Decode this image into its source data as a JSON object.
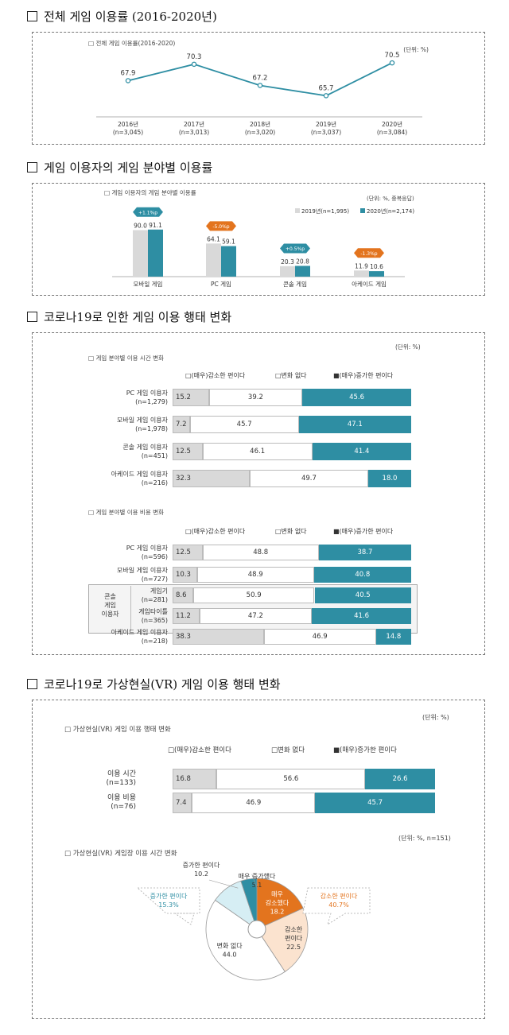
{
  "s1": {
    "title": "전체 게임 이용률 (2016-2020년)",
    "chart_data": {
      "type": "line",
      "subtitle": "□ 전체 게임 이용률(2016-2020)",
      "unit": "(단위: %)",
      "categories": [
        "2016년",
        "2017년",
        "2018년",
        "2019년",
        "2020년"
      ],
      "n": [
        "(n=3,045)",
        "(n=3,013)",
        "(n=3,020)",
        "(n=3,037)",
        "(n=3,084)"
      ],
      "values": [
        67.9,
        70.3,
        67.2,
        65.7,
        70.5
      ],
      "color": "#2e8ea3"
    }
  },
  "s2": {
    "title": "게임 이용자의 게임 분야별 이용률",
    "chart_data": {
      "type": "bar",
      "subtitle": "□ 게임 이용자의 게임 분야별 이용률",
      "unit": "(단위: %, 중복응답)",
      "categories": [
        "모바일 게임",
        "PC 게임",
        "콘솔 게임",
        "아케이드 게임"
      ],
      "series": [
        {
          "name": "2019년(n=1,995)",
          "color": "#d9d9d9",
          "values": [
            90.0,
            64.1,
            20.3,
            11.9
          ]
        },
        {
          "name": "2020년(n=2,174)",
          "color": "#2e8ea3",
          "values": [
            91.1,
            59.1,
            20.8,
            10.6
          ]
        }
      ],
      "diff": [
        "+1.1%p",
        "-5.0%p",
        "+0.5%p",
        "-1.3%p"
      ],
      "diff_colors": [
        "#2e8ea3",
        "#e3741e",
        "#2e8ea3",
        "#e3741e"
      ]
    }
  },
  "s3": {
    "title": "코로나19로 인한 게임 이용 행태 변화",
    "unit": "(단위: %)",
    "legend": [
      "□(매우)감소한 편이다",
      "□변화 없다",
      "■(매우)증가한 편이다"
    ],
    "chart_data": [
      {
        "type": "bar",
        "subtitle": "□ 게임 분야별 이용 시간 변화",
        "rows": [
          {
            "label": "PC 게임 이용자",
            "n": "(n=1,279)",
            "values": [
              15.2,
              39.2,
              45.6
            ]
          },
          {
            "label": "모바일 게임 이용자",
            "n": "(n=1,978)",
            "values": [
              7.2,
              45.7,
              47.1
            ]
          },
          {
            "label": "콘솔 게임 이용자",
            "n": "(n=451)",
            "values": [
              12.5,
              46.1,
              41.4
            ]
          },
          {
            "label": "아케이드 게임 이용자",
            "n": "(n=216)",
            "values": [
              32.3,
              49.7,
              18.0
            ]
          }
        ]
      },
      {
        "type": "bar",
        "subtitle": "□ 게임 분야별 이용 비용 변화",
        "group_label": "콘솔\n게임\n이용자",
        "rows": [
          {
            "label": "PC 게임 이용자",
            "n": "(n=596)",
            "values": [
              12.5,
              48.8,
              38.7
            ]
          },
          {
            "label": "모바일 게임 이용자",
            "n": "(n=727)",
            "values": [
              10.3,
              48.9,
              40.8
            ]
          },
          {
            "label": "게임기",
            "n": "(n=281)",
            "values": [
              8.6,
              50.9,
              40.5
            ]
          },
          {
            "label": "게임타이틀",
            "n": "(n=365)",
            "values": [
              11.2,
              47.2,
              41.6
            ]
          },
          {
            "label": "아케이드 게임 이용자",
            "n": "(n=218)",
            "values": [
              38.3,
              46.9,
              14.8
            ]
          }
        ]
      }
    ]
  },
  "s4": {
    "title": "코로나19로 가상현실(VR) 게임 이용 행태 변화",
    "unit": "(단위: %)",
    "legend": [
      "□(매우)감소한 편이다",
      "□변화 없다",
      "■(매우)증가한 편이다"
    ],
    "chart_data": [
      {
        "type": "bar",
        "subtitle": "□ 가상현실(VR) 게임 이용 행태 변화",
        "rows": [
          {
            "label": "이용 시간",
            "n": "(n=133)",
            "values": [
              16.8,
              56.6,
              26.6
            ]
          },
          {
            "label": "이용 비용",
            "n": "(n=76)",
            "values": [
              7.4,
              46.9,
              45.7
            ]
          }
        ]
      },
      {
        "type": "pie",
        "subtitle": "□ 가상현실(VR) 게임장 이용 시간 변화",
        "unit": "(단위: %, n=151)",
        "slices": [
          {
            "label": "매우 감소했다",
            "value": 18.2,
            "color": "#e3741e"
          },
          {
            "label": "감소한 편이다",
            "value": 22.5,
            "color": "#fbe3cf"
          },
          {
            "label": "변화 없다",
            "value": 44.0,
            "color": "#ffffff"
          },
          {
            "label": "증가한 편이다",
            "value": 10.2,
            "color": "#d6eef4"
          },
          {
            "label": "매우 증가했다",
            "value": 5.1,
            "color": "#2e8ea3"
          }
        ],
        "callouts": [
          {
            "label": "증가한 편이다",
            "value": "15.3%"
          },
          {
            "label": "감소한 편이다",
            "value": "40.7%"
          }
        ]
      }
    ]
  },
  "colors": {
    "dec": "#d9d9d9",
    "none": "#ffffff",
    "inc": "#2e8ea3",
    "orange": "#e3741e"
  }
}
